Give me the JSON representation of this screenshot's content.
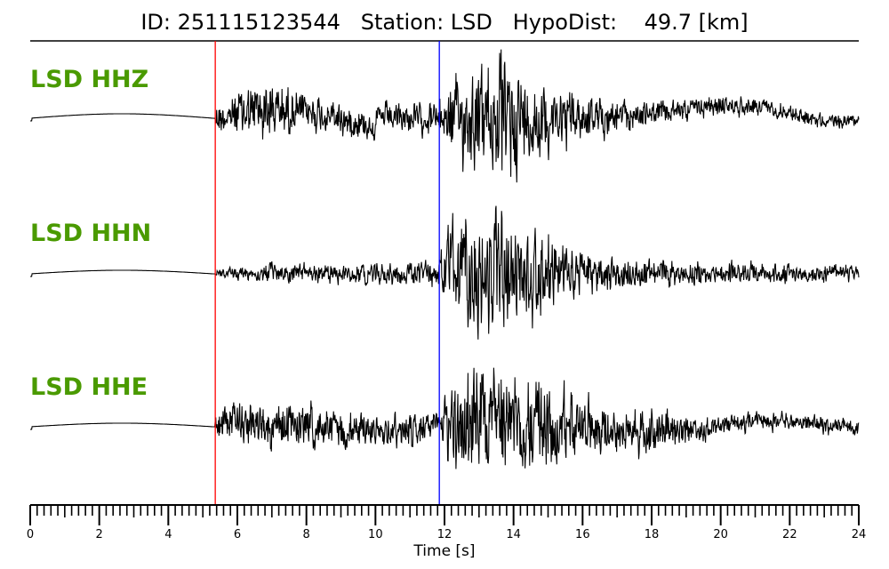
{
  "chart_data": {
    "type": "line",
    "title": "ID: 251115123544   Station: LSD   HypoDist:    49.7 [km]",
    "xlabel": "Time [s]",
    "xlim": [
      0,
      24
    ],
    "xticks": [
      "0",
      "2",
      "4",
      "6",
      "8",
      "10",
      "12",
      "14",
      "16",
      "18",
      "20",
      "22",
      "24"
    ],
    "picks": [
      {
        "phase": "P",
        "time": 5.36,
        "color": "#ff0000"
      },
      {
        "phase": "S",
        "time": 11.85,
        "color": "#0000ff"
      }
    ],
    "trace_color": "#000000",
    "label_color": "#4a9a00",
    "traces": [
      {
        "label": "LSD HHZ",
        "envelope": [
          [
            0,
            0
          ],
          [
            5.35,
            0
          ],
          [
            5.4,
            0.25
          ],
          [
            6.6,
            0.5
          ],
          [
            8,
            0.3
          ],
          [
            10,
            0.22
          ],
          [
            11.8,
            0.25
          ],
          [
            12.2,
            0.6
          ],
          [
            13.8,
            1.0
          ],
          [
            14.8,
            0.6
          ],
          [
            16,
            0.35
          ],
          [
            18,
            0.18
          ],
          [
            24,
            0.1
          ]
        ]
      },
      {
        "label": "LSD HHN",
        "envelope": [
          [
            0,
            0
          ],
          [
            5.35,
            0
          ],
          [
            5.4,
            0.08
          ],
          [
            7,
            0.15
          ],
          [
            9,
            0.15
          ],
          [
            11.8,
            0.2
          ],
          [
            12.2,
            0.8
          ],
          [
            13.3,
            1.0
          ],
          [
            14.5,
            0.7
          ],
          [
            16,
            0.35
          ],
          [
            18,
            0.2
          ],
          [
            24,
            0.12
          ]
        ]
      },
      {
        "label": "LSD HHE",
        "envelope": [
          [
            0,
            0
          ],
          [
            5.35,
            0
          ],
          [
            5.4,
            0.3
          ],
          [
            7,
            0.35
          ],
          [
            9,
            0.3
          ],
          [
            11.8,
            0.25
          ],
          [
            12.2,
            0.7
          ],
          [
            13.2,
            1.0
          ],
          [
            14.8,
            0.7
          ],
          [
            16.5,
            0.4
          ],
          [
            18.5,
            0.3
          ],
          [
            20,
            0.15
          ],
          [
            24,
            0.12
          ]
        ]
      }
    ]
  }
}
